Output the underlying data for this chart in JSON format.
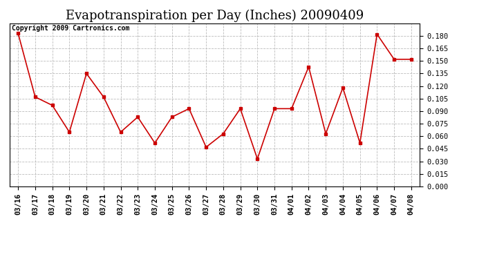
{
  "title": "Evapotranspiration per Day (Inches) 20090409",
  "copyright": "Copyright 2009 Cartronics.com",
  "x_labels": [
    "03/16",
    "03/17",
    "03/18",
    "03/19",
    "03/20",
    "03/21",
    "03/22",
    "03/23",
    "03/24",
    "03/25",
    "03/26",
    "03/27",
    "03/28",
    "03/29",
    "03/30",
    "03/31",
    "04/01",
    "04/02",
    "04/03",
    "04/04",
    "04/05",
    "04/06",
    "04/07",
    "04/08"
  ],
  "y_values": [
    0.183,
    0.107,
    0.097,
    0.065,
    0.135,
    0.107,
    0.065,
    0.083,
    0.052,
    0.083,
    0.093,
    0.047,
    0.063,
    0.093,
    0.033,
    0.093,
    0.093,
    0.143,
    0.063,
    0.118,
    0.052,
    0.182,
    0.152,
    0.152
  ],
  "line_color": "#cc0000",
  "marker": "s",
  "marker_size": 3,
  "ylim": [
    0.0,
    0.195
  ],
  "yticks": [
    0.0,
    0.015,
    0.03,
    0.045,
    0.06,
    0.075,
    0.09,
    0.105,
    0.12,
    0.135,
    0.15,
    0.165,
    0.18
  ],
  "background_color": "#ffffff",
  "grid_color": "#bbbbbb",
  "title_fontsize": 13,
  "copyright_fontsize": 7,
  "tick_fontsize": 7.5
}
